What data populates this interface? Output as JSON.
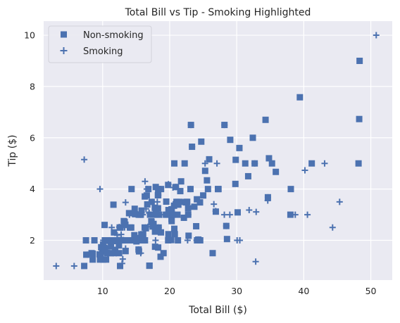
{
  "chart_data": {
    "type": "scatter",
    "title": "Total Bill vs Tip - Smoking Highlighted",
    "xlabel": "Total Bill ($)",
    "ylabel": "Tip ($)",
    "xlim": [
      1.2,
      53.2
    ],
    "ylim": [
      0.45,
      10.55
    ],
    "xticks": [
      10,
      20,
      30,
      40,
      50
    ],
    "yticks": [
      2,
      4,
      6,
      8,
      10
    ],
    "grid": true,
    "legend_position": "top-left",
    "background_color": "#eaeaf2",
    "grid_color": "#ffffff",
    "series_color": "#4c72b0",
    "series": [
      {
        "name": "Non-smoking",
        "marker": "square",
        "points": [
          [
            7.25,
            1.0
          ],
          [
            7.51,
            2.0
          ],
          [
            7.56,
            1.44
          ],
          [
            8.35,
            1.5
          ],
          [
            8.51,
            1.25
          ],
          [
            8.52,
            1.48
          ],
          [
            8.77,
            2.0
          ],
          [
            9.55,
            1.45
          ],
          [
            9.6,
            1.25
          ],
          [
            9.68,
            1.32
          ],
          [
            9.78,
            1.73
          ],
          [
            9.94,
            1.56
          ],
          [
            10.07,
            1.83
          ],
          [
            10.07,
            1.25
          ],
          [
            10.27,
            1.71
          ],
          [
            10.29,
            2.6
          ],
          [
            10.33,
            1.67
          ],
          [
            10.33,
            2.0
          ],
          [
            10.34,
            1.66
          ],
          [
            10.51,
            1.25
          ],
          [
            10.63,
            2.0
          ],
          [
            10.65,
            1.5
          ],
          [
            11.02,
            1.98
          ],
          [
            11.17,
            1.5
          ],
          [
            11.24,
            1.76
          ],
          [
            11.38,
            2.0
          ],
          [
            11.61,
            3.39
          ],
          [
            11.69,
            2.31
          ],
          [
            11.87,
            1.63
          ],
          [
            12.02,
            1.97
          ],
          [
            12.26,
            2.0
          ],
          [
            12.43,
            1.8
          ],
          [
            12.46,
            1.5
          ],
          [
            12.54,
            2.5
          ],
          [
            12.6,
            1.0
          ],
          [
            12.66,
            2.5
          ],
          [
            12.69,
            2.0
          ],
          [
            12.74,
            2.01
          ],
          [
            13.0,
            2.0
          ],
          [
            13.13,
            2.0
          ],
          [
            13.16,
            2.75
          ],
          [
            13.28,
            2.72
          ],
          [
            13.37,
            2.0
          ],
          [
            13.39,
            2.61
          ],
          [
            13.42,
            1.58
          ],
          [
            13.81,
            2.0
          ],
          [
            13.94,
            3.06
          ],
          [
            14.07,
            2.5
          ],
          [
            14.15,
            2.0
          ],
          [
            14.26,
            2.5
          ],
          [
            14.31,
            4.0
          ],
          [
            14.52,
            2.0
          ],
          [
            14.73,
            2.2
          ],
          [
            14.78,
            3.23
          ],
          [
            14.83,
            3.02
          ],
          [
            15.04,
            1.96
          ],
          [
            15.36,
            1.64
          ],
          [
            15.38,
            3.0
          ],
          [
            15.42,
            1.57
          ],
          [
            15.48,
            2.02
          ],
          [
            15.53,
            3.0
          ],
          [
            15.69,
            3.0
          ],
          [
            15.77,
            2.23
          ],
          [
            15.95,
            2.0
          ],
          [
            15.98,
            2.03
          ],
          [
            16.0,
            2.0
          ],
          [
            16.04,
            2.24
          ],
          [
            16.21,
            2.0
          ],
          [
            16.27,
            2.5
          ],
          [
            16.29,
            3.71
          ],
          [
            16.31,
            2.0
          ],
          [
            16.45,
            2.47
          ],
          [
            16.66,
            3.4
          ],
          [
            16.97,
            1.01
          ],
          [
            16.99,
            1.01
          ],
          [
            17.07,
            3.0
          ],
          [
            17.26,
            2.74
          ],
          [
            17.29,
            2.71
          ],
          [
            17.31,
            3.5
          ],
          [
            17.46,
            2.54
          ],
          [
            17.51,
            3.0
          ],
          [
            17.59,
            2.64
          ],
          [
            17.78,
            3.27
          ],
          [
            17.81,
            2.34
          ],
          [
            17.82,
            1.75
          ],
          [
            17.92,
            4.08
          ],
          [
            18.04,
            3.0
          ],
          [
            18.24,
            3.76
          ],
          [
            18.26,
            3.25
          ],
          [
            18.28,
            4.0
          ],
          [
            18.29,
            3.76
          ],
          [
            18.35,
            2.5
          ],
          [
            18.43,
            3.0
          ],
          [
            18.69,
            2.31
          ],
          [
            18.71,
            4.0
          ],
          [
            19.08,
            1.5
          ],
          [
            19.44,
            3.0
          ],
          [
            19.49,
            3.51
          ],
          [
            19.65,
            3.0
          ],
          [
            19.77,
            2.0
          ],
          [
            19.81,
            2.24
          ],
          [
            19.82,
            3.18
          ],
          [
            20.23,
            2.01
          ],
          [
            20.27,
            2.83
          ],
          [
            20.29,
            2.75
          ],
          [
            20.29,
            3.21
          ],
          [
            20.45,
            3.0
          ],
          [
            20.65,
            3.35
          ],
          [
            20.69,
            2.45
          ],
          [
            20.69,
            5.0
          ],
          [
            20.76,
            2.24
          ],
          [
            20.92,
            4.08
          ],
          [
            21.01,
            3.5
          ],
          [
            21.16,
            3.0
          ],
          [
            21.5,
            3.5
          ],
          [
            21.58,
            3.92
          ],
          [
            21.7,
            4.3
          ],
          [
            22.23,
            5.0
          ],
          [
            22.42,
            3.48
          ],
          [
            22.49,
            3.5
          ],
          [
            22.75,
            3.25
          ],
          [
            22.76,
            3.0
          ],
          [
            22.82,
            2.18
          ],
          [
            23.1,
            4.0
          ],
          [
            23.33,
            5.65
          ],
          [
            23.68,
            3.31
          ],
          [
            23.95,
            2.55
          ],
          [
            24.06,
            3.6
          ],
          [
            24.08,
            2.0
          ],
          [
            24.52,
            3.48
          ],
          [
            24.55,
            2.0
          ],
          [
            24.71,
            5.85
          ],
          [
            25.0,
            3.75
          ],
          [
            25.29,
            4.71
          ],
          [
            25.56,
            4.34
          ],
          [
            25.71,
            4.0
          ],
          [
            25.89,
            5.16
          ],
          [
            26.41,
            1.5
          ],
          [
            26.88,
            3.12
          ],
          [
            27.2,
            4.0
          ],
          [
            27.28,
            4.0
          ],
          [
            28.44,
            2.56
          ],
          [
            28.55,
            2.05
          ],
          [
            29.8,
            4.2
          ],
          [
            29.85,
            5.14
          ],
          [
            30.14,
            3.09
          ],
          [
            30.4,
            5.6
          ],
          [
            31.27,
            5.0
          ],
          [
            31.71,
            4.5
          ],
          [
            32.68,
            5.0
          ],
          [
            32.4,
            6.0
          ],
          [
            34.3,
            6.7
          ],
          [
            34.81,
            5.2
          ],
          [
            35.26,
            5.0
          ],
          [
            35.83,
            4.67
          ],
          [
            38.01,
            3.0
          ],
          [
            39.42,
            7.58
          ],
          [
            41.19,
            5.0
          ],
          [
            48.17,
            5.0
          ],
          [
            48.27,
            6.73
          ],
          [
            48.33,
            9.0
          ],
          [
            21.29,
            3.39
          ],
          [
            16.82,
            4.0
          ],
          [
            19.77,
            4.16
          ],
          [
            22.61,
            3.5
          ],
          [
            17.92,
            3.08
          ],
          [
            15.81,
            3.16
          ],
          [
            28.17,
            6.5
          ],
          [
            38.07,
            4.0
          ],
          [
            11.59,
            1.5
          ],
          [
            13.03,
            2.0
          ],
          [
            18.28,
            1.72
          ],
          [
            16.58,
            3.75
          ],
          [
            13.51,
            2.0
          ],
          [
            18.64,
            1.36
          ],
          [
            20.29,
            3.21
          ],
          [
            15.01,
            2.09
          ],
          [
            21.23,
            2.0
          ],
          [
            14.48,
            2.0
          ],
          [
            34.65,
            3.68
          ],
          [
            23.17,
            6.5
          ],
          [
            22.12,
            2.88
          ],
          [
            24.27,
            2.03
          ],
          [
            29.03,
            5.92
          ]
        ]
      },
      {
        "name": "Smoking",
        "marker": "plus",
        "points": [
          [
            3.07,
            1.0
          ],
          [
            5.75,
            1.0
          ],
          [
            7.25,
            5.15
          ],
          [
            7.74,
            1.44
          ],
          [
            9.6,
            4.0
          ],
          [
            10.09,
            2.0
          ],
          [
            10.59,
            1.61
          ],
          [
            10.77,
            1.47
          ],
          [
            11.35,
            2.5
          ],
          [
            11.59,
            1.5
          ],
          [
            12.16,
            2.2
          ],
          [
            12.48,
            2.52
          ],
          [
            12.76,
            2.23
          ],
          [
            12.9,
            1.1
          ],
          [
            13.0,
            1.27
          ],
          [
            13.27,
            2.5
          ],
          [
            13.42,
            3.48
          ],
          [
            13.42,
            1.68
          ],
          [
            13.51,
            2.0
          ],
          [
            14.0,
            3.0
          ],
          [
            14.15,
            2.0
          ],
          [
            14.48,
            2.0
          ],
          [
            15.01,
            2.09
          ],
          [
            15.36,
            1.64
          ],
          [
            15.69,
            1.5
          ],
          [
            15.98,
            3.0
          ],
          [
            16.32,
            4.3
          ],
          [
            16.4,
            2.5
          ],
          [
            16.47,
            3.23
          ],
          [
            16.58,
            4.0
          ],
          [
            17.47,
            3.5
          ],
          [
            17.89,
            2.0
          ],
          [
            18.15,
            3.5
          ],
          [
            18.29,
            3.76
          ],
          [
            18.78,
            3.0
          ],
          [
            19.81,
            4.19
          ],
          [
            20.08,
            3.15
          ],
          [
            20.45,
            3.0
          ],
          [
            20.49,
            4.06
          ],
          [
            20.9,
            3.5
          ],
          [
            22.12,
            2.88
          ],
          [
            22.42,
            3.48
          ],
          [
            22.67,
            2.0
          ],
          [
            23.1,
            4.0
          ],
          [
            23.17,
            6.5
          ],
          [
            23.33,
            5.65
          ],
          [
            24.01,
            2.0
          ],
          [
            24.27,
            2.03
          ],
          [
            25.28,
            5.0
          ],
          [
            26.59,
            3.41
          ],
          [
            26.86,
            3.14
          ],
          [
            27.05,
            5.0
          ],
          [
            28.15,
            3.0
          ],
          [
            28.17,
            6.5
          ],
          [
            28.44,
            2.56
          ],
          [
            28.97,
            3.0
          ],
          [
            30.06,
            2.0
          ],
          [
            30.46,
            2.0
          ],
          [
            31.85,
            3.18
          ],
          [
            32.68,
            5.0
          ],
          [
            32.83,
            1.17
          ],
          [
            32.9,
            3.11
          ],
          [
            34.63,
            3.55
          ],
          [
            34.65,
            3.68
          ],
          [
            38.73,
            3.0
          ],
          [
            40.17,
            4.73
          ],
          [
            40.55,
            3.0
          ],
          [
            43.11,
            5.0
          ],
          [
            44.3,
            2.5
          ],
          [
            45.35,
            3.5
          ],
          [
            50.81,
            10.0
          ],
          [
            12.03,
            1.5
          ],
          [
            15.69,
            3.0
          ],
          [
            16.93,
            3.07
          ],
          [
            18.35,
            2.5
          ],
          [
            13.81,
            2.0
          ],
          [
            17.46,
            2.54
          ],
          [
            20.92,
            4.08
          ],
          [
            16.76,
            2.53
          ],
          [
            22.76,
            3.0
          ]
        ]
      }
    ]
  }
}
